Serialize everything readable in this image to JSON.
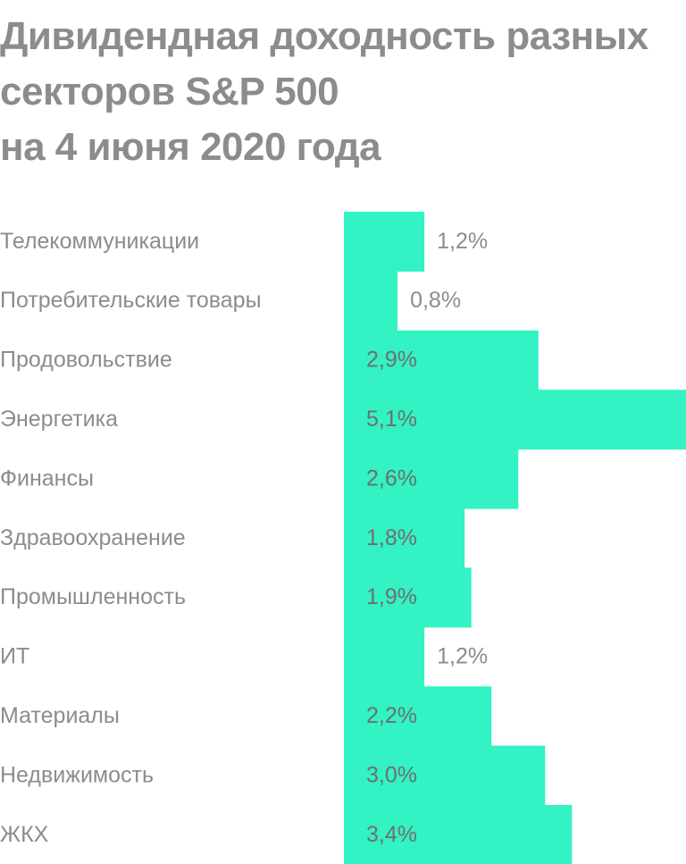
{
  "title_lines": [
    "Дивидендная доходность разных",
    "секторов S&P 500",
    "на 4 июня 2020 года"
  ],
  "colors": {
    "bar": "#33f2c4",
    "text": "#8c8c8c",
    "label_inside": "#6f6f6f"
  },
  "chart_data": {
    "type": "bar",
    "orientation": "horizontal",
    "title": "Дивидендная доходность разных секторов S&P 500 на 4 июня 2020 года",
    "categories": [
      "Телекоммуникации",
      "Потребительские товары",
      "Продовольствие",
      "Энергетика",
      "Финансы",
      "Здравоохранение",
      "Промышленность",
      "ИТ",
      "Материалы",
      "Недвижимость",
      "ЖКХ"
    ],
    "values": [
      1.2,
      0.8,
      2.9,
      5.1,
      2.6,
      1.8,
      1.9,
      1.2,
      2.2,
      3.0,
      3.4
    ],
    "data_labels": [
      "1,2%",
      "0,8%",
      "2,9%",
      "5,1%",
      "2,6%",
      "1,8%",
      "1,9%",
      "1,2%",
      "2,2%",
      "3,0%",
      "3,4%"
    ],
    "unit": "%",
    "xlim": [
      0,
      5.1
    ],
    "grid": false,
    "legend": "none"
  }
}
